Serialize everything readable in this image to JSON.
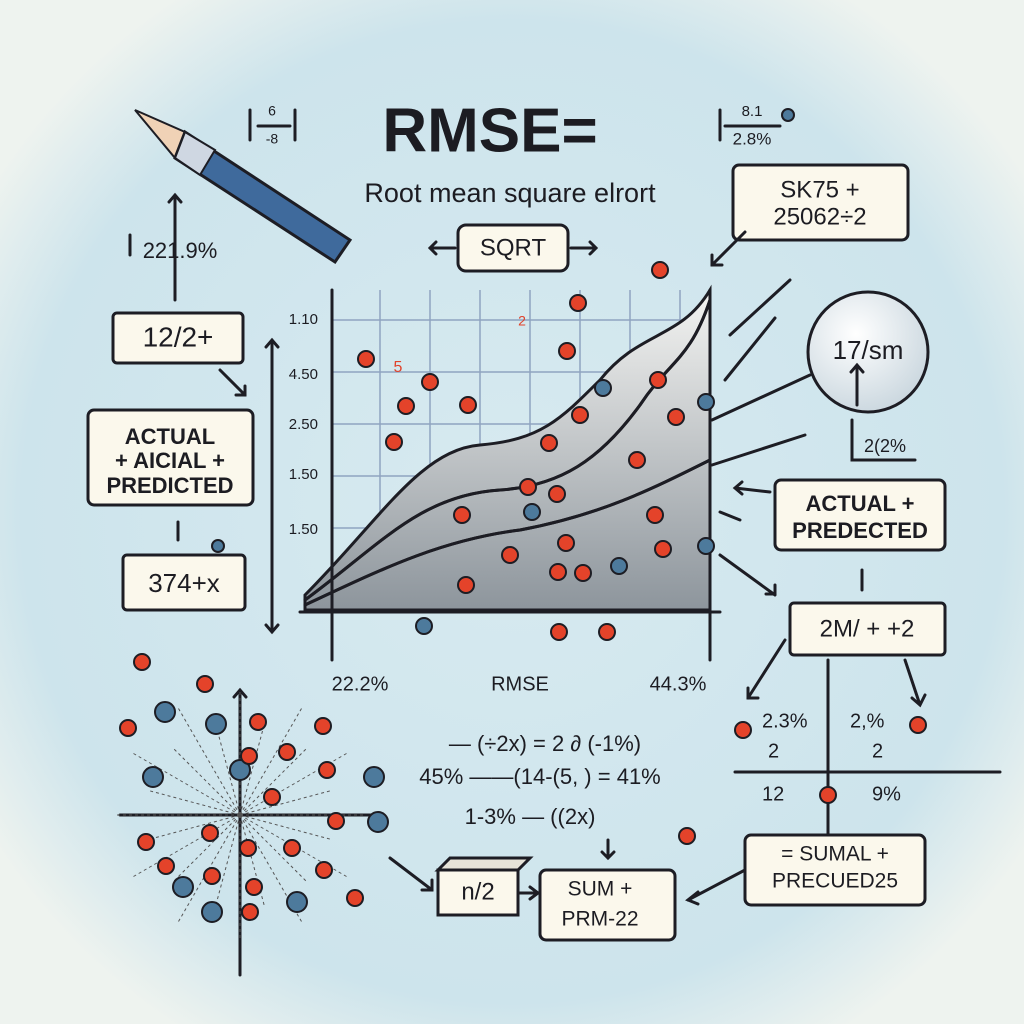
{
  "title": "RMSE=",
  "subtitle": "Root mean square elrort",
  "sqrt_label": "SQRT",
  "corner_notes": {
    "top_left": [
      "6",
      "-8"
    ],
    "top_right": [
      "8.1",
      "2.8%"
    ]
  },
  "left": {
    "percent": "221.9%",
    "box": "12/2+",
    "actual_box": [
      "ACTUAL",
      "+ AICIAL +",
      "PREDICTED"
    ],
    "expr_box": "374+x"
  },
  "right": {
    "top_box": [
      "SK75 +",
      "25062÷2"
    ],
    "lens": "17/sm",
    "lens_note": "2(2%",
    "actual_box": [
      "ACTUAL +",
      "PREDECTED"
    ],
    "box": "2M/ + +2"
  },
  "plot": {
    "y_labels": [
      "1.10",
      "4.50",
      "2.50",
      "1.50",
      "1.50"
    ],
    "red_marks": [
      "5",
      "2"
    ],
    "x_labels": [
      "22.2%",
      "RMSE",
      "44.3%"
    ]
  },
  "equations": [
    "—  (÷2x) = 2 ∂ (-1%)",
    "45% ——(14-(5, ) = 41%",
    "1-3% — ((2x)"
  ],
  "mini_axes": {
    "labels": [
      "2.3%",
      "2",
      "2,%",
      "2",
      "12",
      "9%"
    ]
  },
  "bottom": {
    "n_box": "n/2",
    "sum_box": [
      "SUM +",
      "PRM-22"
    ],
    "sumal_box": [
      "= SUMAL +",
      "PRECUED25"
    ]
  }
}
